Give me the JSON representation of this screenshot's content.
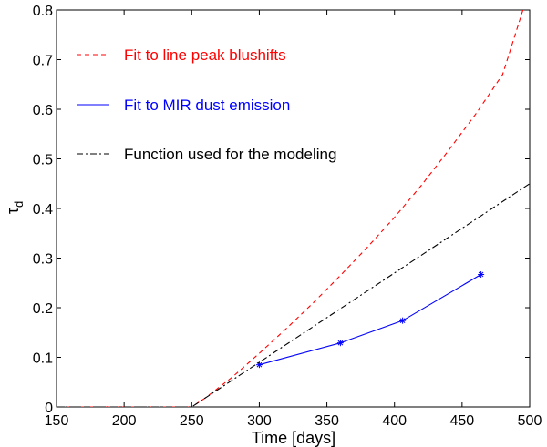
{
  "chart_data": {
    "type": "line",
    "xlabel": "Time [days]",
    "ylabel": "τ",
    "ylabel_sub": "d",
    "xlim": [
      150,
      500
    ],
    "ylim": [
      0,
      0.8
    ],
    "xticks": [
      150,
      200,
      250,
      300,
      350,
      400,
      450,
      500
    ],
    "yticks": [
      0,
      0.1,
      0.2,
      0.3,
      0.4,
      0.5,
      0.6,
      0.7,
      0.8
    ],
    "xtick_labels": [
      "150",
      "200",
      "250",
      "300",
      "350",
      "400",
      "450",
      "500"
    ],
    "ytick_labels": [
      "0",
      "0.1",
      "0.2",
      "0.3",
      "0.4",
      "0.5",
      "0.6",
      "0.7",
      "0.8"
    ],
    "grid": false,
    "legend_position": "top-left",
    "series": [
      {
        "name": "Fit to line peak blushifts",
        "color": "#ff0000",
        "style": "dashed",
        "x": [
          150,
          250,
          260,
          280,
          300,
          320,
          340,
          360,
          380,
          400,
          420,
          440,
          460,
          480,
          495
        ],
        "values": [
          0,
          0,
          0.018,
          0.06,
          0.108,
          0.158,
          0.21,
          0.265,
          0.322,
          0.382,
          0.447,
          0.517,
          0.59,
          0.67,
          0.8
        ]
      },
      {
        "name": "Fit to MIR dust emission",
        "color": "#0000ff",
        "style": "solid",
        "marker": "asterisk",
        "x": [
          300,
          360,
          406,
          464
        ],
        "values": [
          0.085,
          0.129,
          0.174,
          0.267
        ]
      },
      {
        "name": "Function used for the modeling",
        "color": "#000000",
        "style": "dashdot",
        "x": [
          150,
          250,
          500
        ],
        "values": [
          0,
          0,
          0.45
        ]
      }
    ]
  }
}
